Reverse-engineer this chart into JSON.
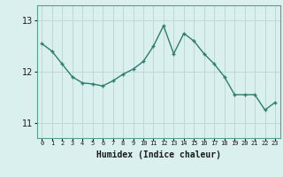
{
  "x": [
    0,
    1,
    2,
    3,
    4,
    5,
    6,
    7,
    8,
    9,
    10,
    11,
    12,
    13,
    14,
    15,
    16,
    17,
    18,
    19,
    20,
    21,
    22,
    23
  ],
  "y": [
    12.55,
    12.4,
    12.15,
    11.9,
    11.78,
    11.76,
    11.72,
    11.82,
    11.95,
    12.05,
    12.2,
    12.5,
    12.9,
    12.35,
    12.75,
    12.6,
    12.35,
    12.15,
    11.9,
    11.55,
    11.55,
    11.55,
    11.25,
    11.4
  ],
  "line_color": "#2e7d6e",
  "marker": "+",
  "marker_size": 3.5,
  "bg_color": "#d9f0ee",
  "grid_color": "#c0d8d4",
  "xlabel": "Humidex (Indice chaleur)",
  "yticks": [
    11,
    12,
    13
  ],
  "ylim": [
    10.7,
    13.3
  ],
  "xlim": [
    -0.5,
    23.5
  ],
  "xtick_fontsize": 5.0,
  "ytick_fontsize": 7.0,
  "xlabel_fontsize": 7.0,
  "linewidth": 1.0
}
